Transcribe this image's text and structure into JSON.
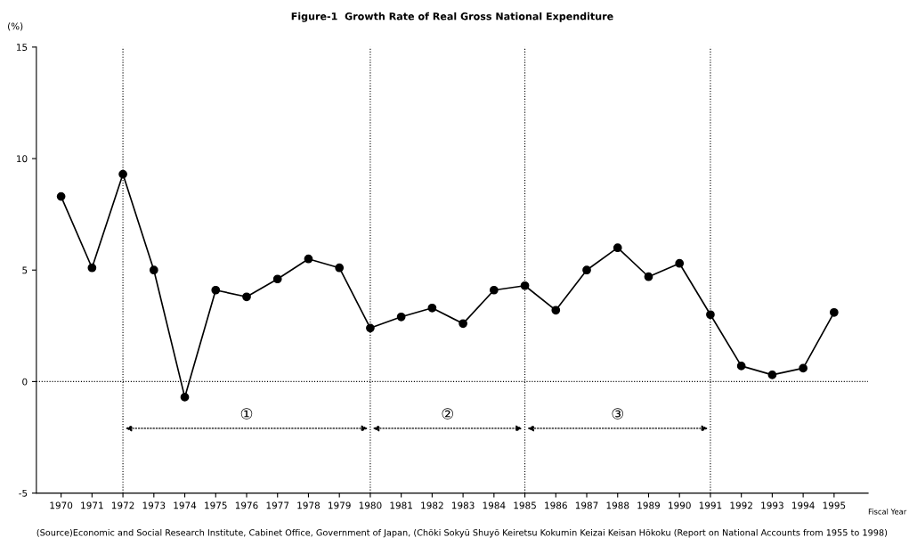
{
  "chart_data": {
    "type": "line",
    "title": "Figure-1  Growth Rate of Real Gross National Expenditure",
    "ylabel": "(%)",
    "xlabel": "Fiscal Year",
    "x": [
      1970,
      1971,
      1972,
      1973,
      1974,
      1975,
      1976,
      1977,
      1978,
      1979,
      1980,
      1981,
      1982,
      1983,
      1984,
      1985,
      1986,
      1987,
      1988,
      1989,
      1990,
      1991,
      1992,
      1993,
      1994,
      1995
    ],
    "series": [
      {
        "color": "#000000",
        "values": [
          8.3,
          5.1,
          9.3,
          5.0,
          -0.7,
          4.1,
          3.8,
          4.6,
          5.5,
          5.1,
          2.4,
          2.9,
          3.3,
          2.6,
          4.1,
          4.3,
          3.2,
          5.0,
          6.0,
          4.7,
          5.3,
          3.0,
          0.7,
          0.3,
          0.6,
          3.1
        ]
      }
    ],
    "xlim": [
      1969.2,
      1996.1
    ],
    "xticks": [
      1970,
      1971,
      1972,
      1973,
      1974,
      1975,
      1976,
      1977,
      1978,
      1979,
      1980,
      1981,
      1982,
      1983,
      1984,
      1985,
      1986,
      1987,
      1988,
      1989,
      1990,
      1991,
      1992,
      1993,
      1994,
      1995
    ],
    "ylim": [
      -5,
      15
    ],
    "yticks": [
      -5,
      0,
      5,
      10,
      15
    ],
    "ref_lines": [
      {
        "axis": "x",
        "value": 1972,
        "line_style": "dotted",
        "color": "#000000"
      },
      {
        "axis": "x",
        "value": 1980,
        "line_style": "dotted",
        "color": "#000000"
      },
      {
        "axis": "x",
        "value": 1985,
        "line_style": "dotted",
        "color": "#000000"
      },
      {
        "axis": "x",
        "value": 1991,
        "line_style": "dotted",
        "color": "#000000"
      },
      {
        "axis": "y",
        "value": 0,
        "line_style": "dotted",
        "color": "#000000"
      }
    ],
    "annotations": [
      "①",
      "②",
      "③",
      "(Source)Economic and Social Research Institute, Cabinet Office, Government of Japan, (Chōki Sokyū Shuyō Keiretsu Kokumin Keizai Keisan Hōkoku (Report on National Accounts from 1955 to 1998)"
    ],
    "marker": "circle",
    "line_style": "solid",
    "grid": false,
    "legend": false
  }
}
